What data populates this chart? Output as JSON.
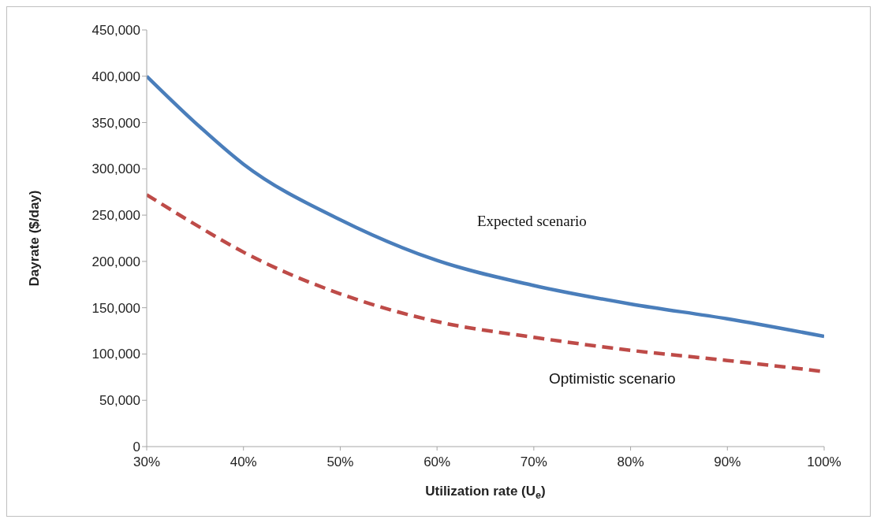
{
  "chart_data": {
    "type": "line",
    "xlabel": "Utilization rate (U$_{e}$)",
    "ylabel": "Dayrate ($/day)",
    "x": [
      30,
      35,
      40,
      50,
      60,
      70,
      80,
      90,
      100
    ],
    "series": [
      {
        "color": "#4a7ebb",
        "line_style": "solid",
        "values": [
          400000,
          350000,
          305000,
          245000,
          201000,
          174000,
          154000,
          138000,
          119000
        ]
      },
      {
        "color": "#be4b48",
        "line_style": "dashed",
        "values": [
          272000,
          240000,
          210000,
          165000,
          135000,
          118000,
          104000,
          93000,
          81000
        ]
      }
    ],
    "xlim": [
      30,
      100
    ],
    "xticks": [
      {
        "value": 30,
        "label": "30%"
      },
      {
        "value": 40,
        "label": "40%"
      },
      {
        "value": 50,
        "label": "50%"
      },
      {
        "value": 60,
        "label": "60%"
      },
      {
        "value": 70,
        "label": "70%"
      },
      {
        "value": 80,
        "label": "80%"
      },
      {
        "value": 90,
        "label": "90%"
      },
      {
        "value": 100,
        "label": "100%"
      }
    ],
    "ylim": [
      0,
      450000
    ],
    "yticks": [
      0,
      {
        "value": 50000,
        "label": "50,000"
      },
      {
        "value": 100000,
        "label": "100,000"
      },
      {
        "value": 150000,
        "label": "150,000"
      },
      {
        "value": 200000,
        "label": "200,000"
      },
      {
        "value": 250000,
        "label": "250,000"
      },
      {
        "value": 300000,
        "label": "300,000"
      },
      {
        "value": 350000,
        "label": "350,000"
      },
      {
        "value": 400000,
        "label": "400,000"
      },
      {
        "value": 450000,
        "label": "450,000"
      }
    ],
    "annotations": [
      "Expected scenario",
      "Optimistic scenario"
    ]
  }
}
